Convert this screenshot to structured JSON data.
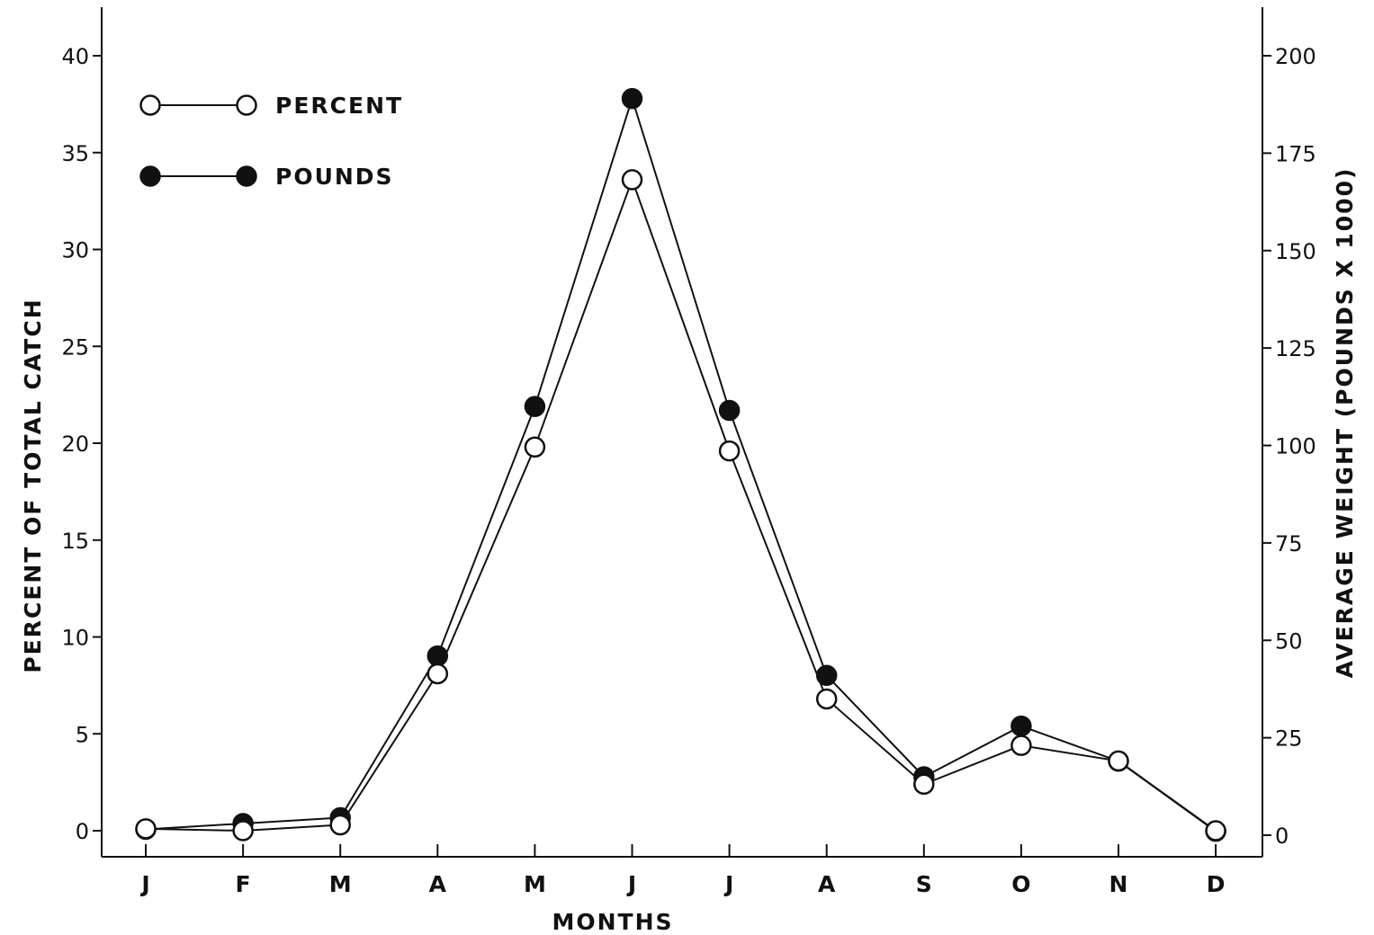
{
  "chart_data": {
    "type": "line",
    "title": "",
    "xlabel": "MONTHS",
    "ylabel": "PERCENT OF TOTAL CATCH",
    "y2label": "AVERAGE WEIGHT (POUNDS X 1000)",
    "categories": [
      "J",
      "F",
      "M",
      "A",
      "M",
      "J",
      "J",
      "A",
      "S",
      "O",
      "N",
      "D"
    ],
    "ylim": [
      0,
      40
    ],
    "y2lim": [
      0,
      200
    ],
    "yticks": [
      0,
      5,
      10,
      15,
      20,
      25,
      30,
      35,
      40
    ],
    "y2ticks": [
      0,
      25,
      50,
      75,
      100,
      125,
      150,
      175,
      200
    ],
    "grid": false,
    "legend_position": "top-left",
    "series": [
      {
        "name": "PERCENT",
        "axis": "left",
        "marker": "open-circle",
        "values": [
          0.1,
          0.0,
          0.3,
          8.1,
          19.8,
          33.6,
          19.6,
          6.8,
          2.4,
          4.4,
          3.6,
          0.0
        ]
      },
      {
        "name": "POUNDS",
        "axis": "right",
        "marker": "filled-circle",
        "values": [
          1.5,
          3.0,
          4.5,
          46,
          110,
          189,
          109,
          41,
          15,
          28,
          19,
          1
        ]
      }
    ]
  }
}
